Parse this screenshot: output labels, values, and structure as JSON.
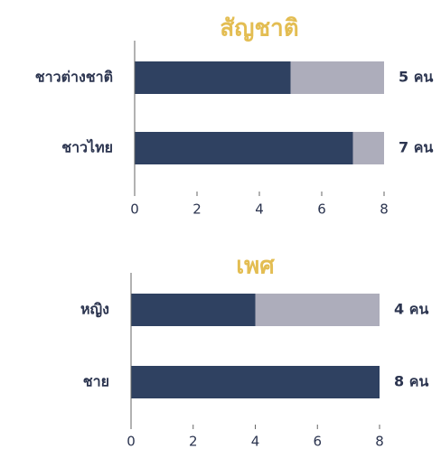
{
  "chart_data": [
    {
      "type": "bar",
      "orientation": "horizontal",
      "title": "สัญชาติ",
      "categories": [
        "ชาวต่างชาติ",
        "ชาวไทย"
      ],
      "values": [
        5,
        7
      ],
      "value_labels": [
        "5 คน",
        "7 คน"
      ],
      "color": "#2f4161",
      "track_color": "#adadbb",
      "title_color": "#e3bd52",
      "xlim": [
        0,
        8
      ],
      "xticks": [
        0,
        2,
        4,
        6,
        8
      ]
    },
    {
      "type": "bar",
      "orientation": "horizontal",
      "title": "เพศ",
      "categories": [
        "หญิง",
        "ชาย"
      ],
      "values": [
        4,
        8
      ],
      "value_labels": [
        "4 คน",
        "8 คน"
      ],
      "color": "#2f4161",
      "track_color": "#adadbb",
      "title_color": "#e3bd52",
      "xlim": [
        0,
        8
      ],
      "xticks": [
        0,
        2,
        4,
        6,
        8
      ]
    }
  ]
}
